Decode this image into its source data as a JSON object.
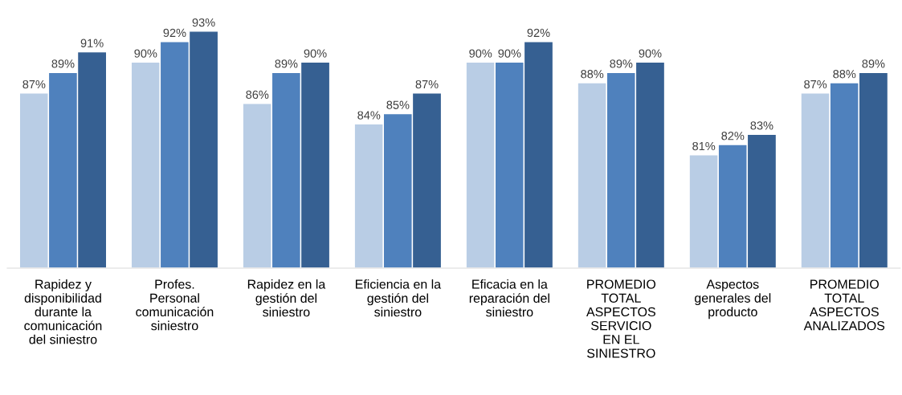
{
  "chart_data": {
    "type": "bar",
    "categories": [
      "Rapidez y\ndisponibilidad\ndurante la\ncomunicación\ndel siniestro",
      "Profes.\nPersonal\ncomunicación\nsiniestro",
      "Rapidez en la\ngestión del\nsiniestro",
      "Eficiencia en la\ngestión del\nsiniestro",
      "Eficacia en la\nreparación del\nsiniestro",
      "PROMEDIO\nTOTAL\nASPECTOS\nSERVICIO\nEN EL\nSINIESTRO",
      "Aspectos\ngenerales del\nproducto",
      "PROMEDIO\nTOTAL\nASPECTOS\nANALIZADOS"
    ],
    "series": [
      {
        "color": "#b9cde5",
        "values": [
          87,
          90,
          86,
          84,
          90,
          88,
          81,
          87
        ],
        "value_labels": [
          "87%",
          "90%",
          "86%",
          "84%",
          "90%",
          "88%",
          "81%",
          "87%"
        ]
      },
      {
        "color": "#4f81bd",
        "values": [
          89,
          92,
          89,
          85,
          90,
          89,
          82,
          88
        ],
        "value_labels": [
          "89%",
          "92%",
          "89%",
          "85%",
          "90%",
          "89%",
          "82%",
          "88%"
        ]
      },
      {
        "color": "#366092",
        "values": [
          91,
          93,
          90,
          87,
          92,
          90,
          83,
          89
        ],
        "value_labels": [
          "91%",
          "93%",
          "90%",
          "87%",
          "92%",
          "90%",
          "83%",
          "89%"
        ]
      }
    ],
    "ylim": [
      70,
      93
    ],
    "grid": false,
    "legend": false
  }
}
